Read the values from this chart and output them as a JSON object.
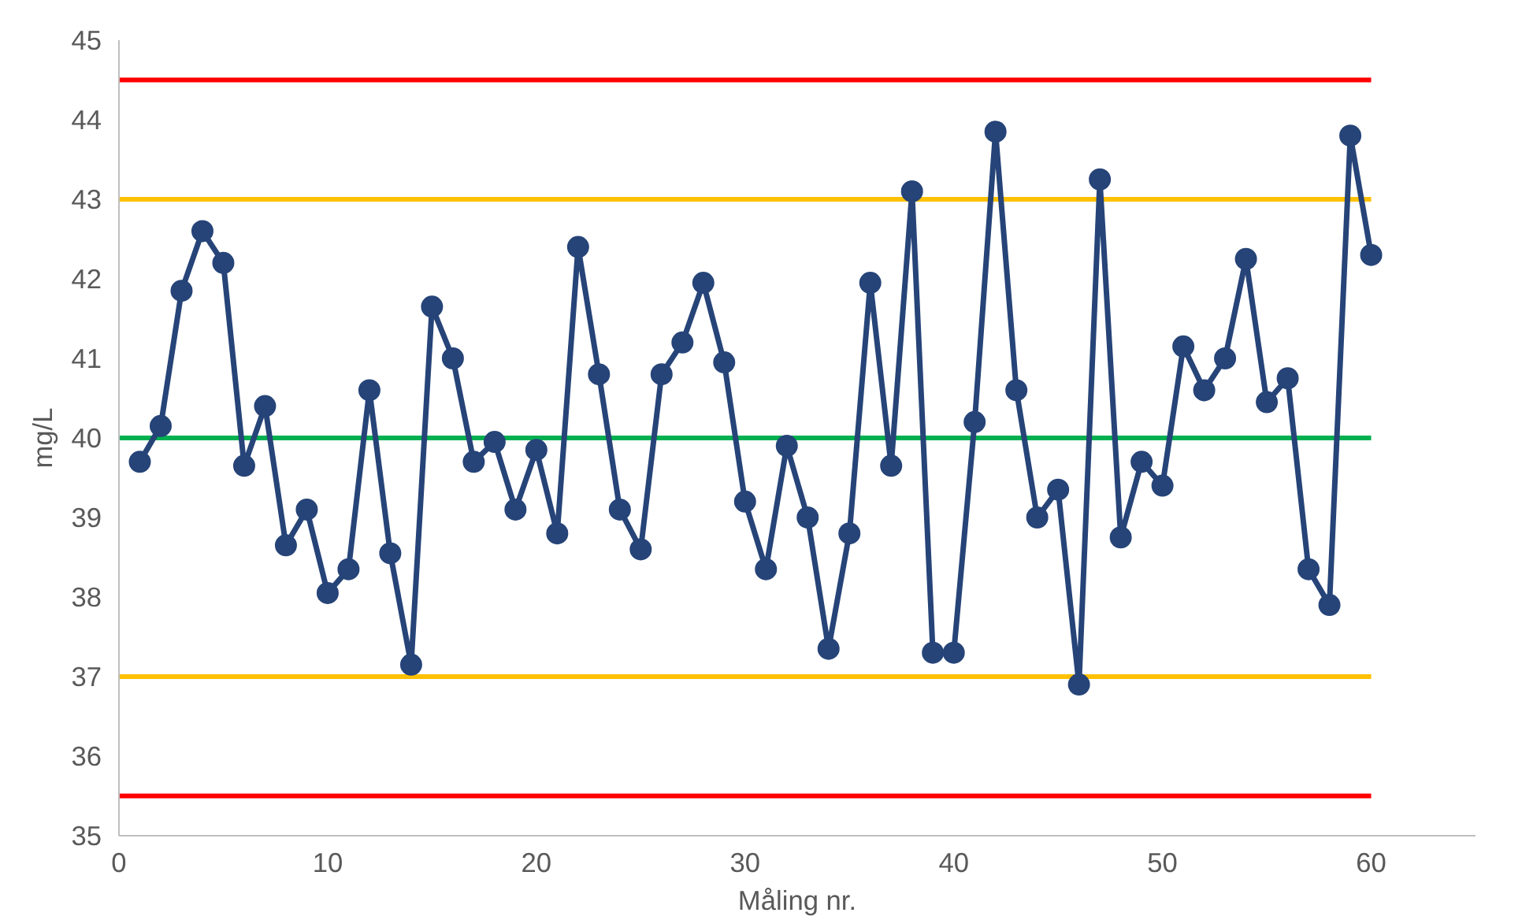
{
  "chart_data": {
    "type": "line",
    "xlabel": "Måling nr.",
    "ylabel": "mg/L",
    "x": [
      1,
      2,
      3,
      4,
      5,
      6,
      7,
      8,
      9,
      10,
      11,
      12,
      13,
      14,
      15,
      16,
      17,
      18,
      19,
      20,
      21,
      22,
      23,
      24,
      25,
      26,
      27,
      28,
      29,
      30,
      31,
      32,
      33,
      34,
      35,
      36,
      37,
      38,
      39,
      40,
      41,
      42,
      43,
      44,
      45,
      46,
      47,
      48,
      49,
      50,
      51,
      52,
      53,
      54,
      55,
      56,
      57,
      58,
      59,
      60
    ],
    "series": [
      {
        "color": "#264478",
        "values": [
          39.7,
          40.15,
          41.85,
          42.6,
          42.2,
          39.65,
          40.4,
          38.65,
          39.1,
          38.05,
          38.35,
          40.6,
          38.55,
          37.15,
          41.65,
          41.0,
          39.7,
          39.95,
          39.1,
          39.85,
          38.8,
          42.4,
          40.8,
          39.1,
          38.6,
          40.8,
          41.2,
          41.95,
          40.95,
          39.2,
          38.35,
          39.9,
          39.0,
          37.35,
          38.8,
          41.95,
          39.65,
          43.1,
          37.3,
          37.3,
          40.2,
          43.85,
          40.6,
          39.0,
          39.35,
          36.9,
          43.25,
          38.75,
          39.7,
          39.4,
          41.15,
          40.6,
          41.0,
          42.25,
          40.45,
          40.75,
          38.35,
          37.9,
          43.8,
          42.3
        ]
      }
    ],
    "xlim": [
      0,
      65
    ],
    "xticks": [
      0,
      10,
      20,
      30,
      40,
      50,
      60
    ],
    "ylim": [
      35,
      45
    ],
    "yticks": [
      35,
      36,
      37,
      38,
      39,
      40,
      41,
      42,
      43,
      44,
      45
    ],
    "ref_lines": [
      {
        "axis": "y",
        "value": 44.5,
        "color": "#ff0000"
      },
      {
        "axis": "y",
        "value": 43,
        "color": "#ffc000"
      },
      {
        "axis": "y",
        "value": 40,
        "color": "#00b050"
      },
      {
        "axis": "y",
        "value": 37,
        "color": "#ffc000"
      },
      {
        "axis": "y",
        "value": 35.5,
        "color": "#ff0000"
      }
    ],
    "grid": false,
    "marker": "circle",
    "line_style": "solid"
  }
}
